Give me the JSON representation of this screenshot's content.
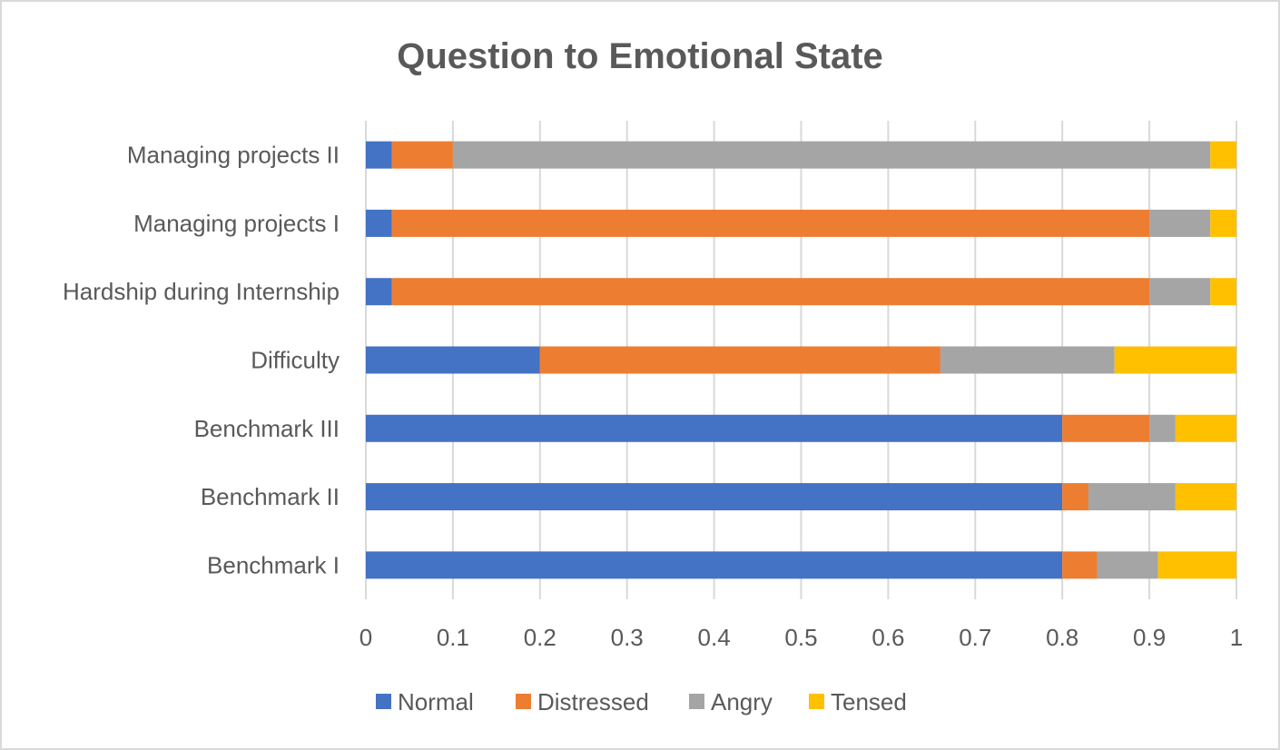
{
  "chart_data": {
    "type": "bar",
    "orientation": "horizontal",
    "stacked": true,
    "title": "Question to Emotional State",
    "xlabel": "",
    "ylabel": "",
    "xlim": [
      0,
      1
    ],
    "x_ticks": [
      "0",
      "0.1",
      "0.2",
      "0.3",
      "0.4",
      "0.5",
      "0.6",
      "0.7",
      "0.8",
      "0.9",
      "1"
    ],
    "grid": "vertical",
    "legend_position": "bottom",
    "categories": [
      "Benchmark I",
      "Benchmark II",
      "Benchmark III",
      "Difficulty",
      "Hardship during Internship",
      "Managing projects I",
      "Managing projects II"
    ],
    "series": [
      {
        "name": "Normal",
        "color": "#4472c4",
        "values": [
          0.8,
          0.8,
          0.8,
          0.2,
          0.03,
          0.03,
          0.03
        ]
      },
      {
        "name": "Distressed",
        "color": "#ed7d31",
        "values": [
          0.04,
          0.03,
          0.1,
          0.46,
          0.87,
          0.87,
          0.07
        ]
      },
      {
        "name": "Angry",
        "color": "#a5a5a5",
        "values": [
          0.07,
          0.1,
          0.03,
          0.2,
          0.07,
          0.07,
          0.87
        ]
      },
      {
        "name": "Tensed",
        "color": "#ffc000",
        "values": [
          0.09,
          0.07,
          0.07,
          0.14,
          0.03,
          0.03,
          0.03
        ]
      }
    ]
  }
}
